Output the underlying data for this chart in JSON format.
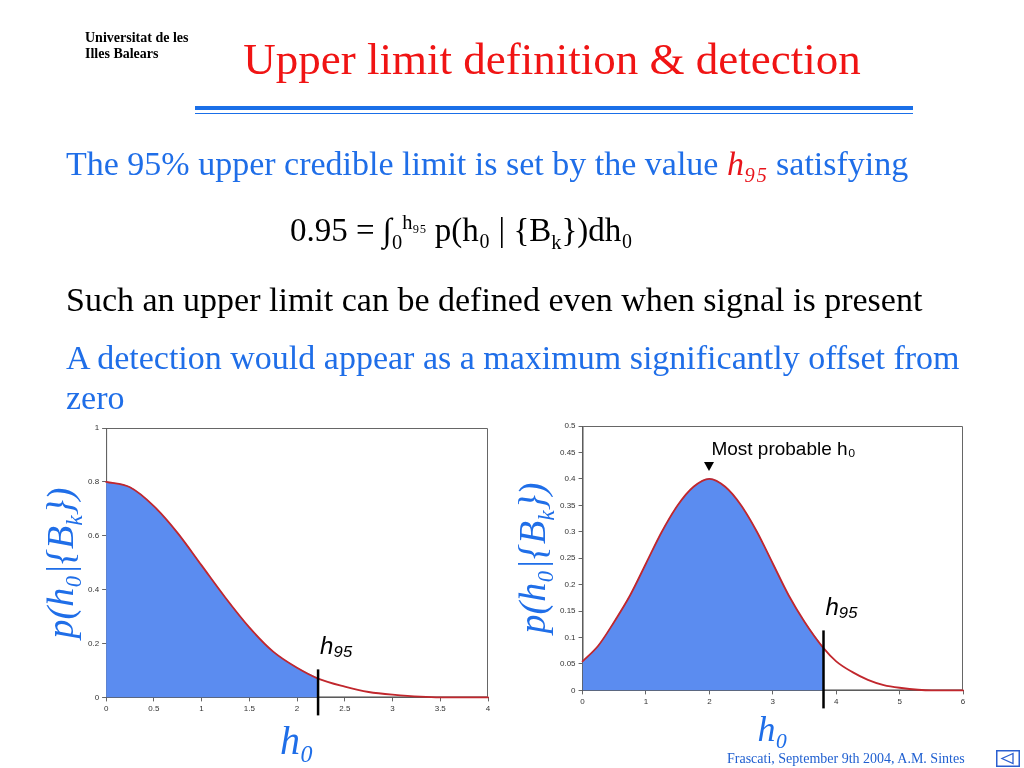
{
  "chart_data": [
    {
      "type": "other",
      "title": "Upper limit definition & detection",
      "annotations": [
        "Universitat de les Illes Balears",
        "The 95% upper credible limit is set by the value h₉₅ satisfying",
        "0.95 = ∫$_{0}$$^{h₉₅}$ p(h₀ | {B$_{k}$})dh₀",
        "Such an upper limit can be defined even when signal is present",
        "A detection would appear as a maximum significantly offset from zero"
      ]
    },
    {
      "type": "line",
      "xlabel": "h₀",
      "ylabel": "p(h₀|{B$_{k}$})",
      "xlim": [
        0,
        4
      ],
      "xticks": [
        0,
        0.5,
        1,
        1.5,
        2,
        2.5,
        3,
        3.5,
        4
      ],
      "ylim": [
        0,
        1
      ],
      "yticks": [
        0,
        0.2,
        0.4,
        0.6,
        0.8,
        1
      ],
      "series": [
        {
          "type": "area",
          "color": "#5b8cf0",
          "x": [
            0,
            0.25,
            0.5,
            0.75,
            1,
            1.25,
            1.5,
            1.75,
            2,
            2.22
          ],
          "values": [
            0.8,
            0.78,
            0.71,
            0.61,
            0.49,
            0.37,
            0.26,
            0.17,
            0.11,
            0.07
          ]
        },
        {
          "type": "line",
          "color": "#c1272d",
          "x": [
            0,
            0.25,
            0.5,
            0.75,
            1,
            1.25,
            1.5,
            1.75,
            2,
            2.22,
            2.5,
            2.75,
            3,
            3.5,
            4
          ],
          "values": [
            0.8,
            0.78,
            0.71,
            0.61,
            0.49,
            0.37,
            0.26,
            0.17,
            0.11,
            0.07,
            0.04,
            0.02,
            0.01,
            0,
            0
          ]
        }
      ],
      "ref_lines": [
        {
          "axis": "x",
          "value": 2.22,
          "label": "h₉₅",
          "color": "#000000"
        }
      ]
    },
    {
      "type": "line",
      "xlabel": "h₀",
      "ylabel": "p(h₀|{B$_{k}$})",
      "xlim": [
        0,
        6
      ],
      "xticks": [
        0,
        1,
        2,
        3,
        4,
        5,
        6
      ],
      "ylim": [
        0,
        0.5
      ],
      "yticks": [
        0,
        0.05,
        0.1,
        0.15,
        0.2,
        0.25,
        0.3,
        0.35,
        0.4,
        0.45,
        0.5
      ],
      "series": [
        {
          "type": "area",
          "color": "#5b8cf0",
          "x": [
            0,
            0.25,
            0.5,
            0.75,
            1,
            1.25,
            1.5,
            1.75,
            2,
            2.25,
            2.5,
            2.75,
            3,
            3.25,
            3.5,
            3.8
          ],
          "values": [
            0.055,
            0.085,
            0.13,
            0.18,
            0.24,
            0.3,
            0.35,
            0.385,
            0.4,
            0.385,
            0.35,
            0.3,
            0.24,
            0.18,
            0.13,
            0.08
          ]
        },
        {
          "type": "line",
          "color": "#c1272d",
          "x": [
            0,
            0.25,
            0.5,
            0.75,
            1,
            1.25,
            1.5,
            1.75,
            2,
            2.25,
            2.5,
            2.75,
            3,
            3.25,
            3.5,
            3.8,
            4,
            4.25,
            4.5,
            4.75,
            5,
            5.5,
            6
          ],
          "values": [
            0.055,
            0.085,
            0.13,
            0.18,
            0.24,
            0.3,
            0.35,
            0.385,
            0.4,
            0.385,
            0.35,
            0.3,
            0.24,
            0.18,
            0.13,
            0.08,
            0.055,
            0.035,
            0.02,
            0.01,
            0.005,
            0,
            0
          ]
        }
      ],
      "ref_lines": [
        {
          "axis": "x",
          "value": 3.8,
          "label": "h₉₅",
          "color": "#000000"
        }
      ],
      "annotations": [
        {
          "text": "Most probable h₀",
          "x": 2,
          "y": 0.4
        },
        "Frascati, September 9th 2004, A.M. Sintes"
      ]
    }
  ]
}
